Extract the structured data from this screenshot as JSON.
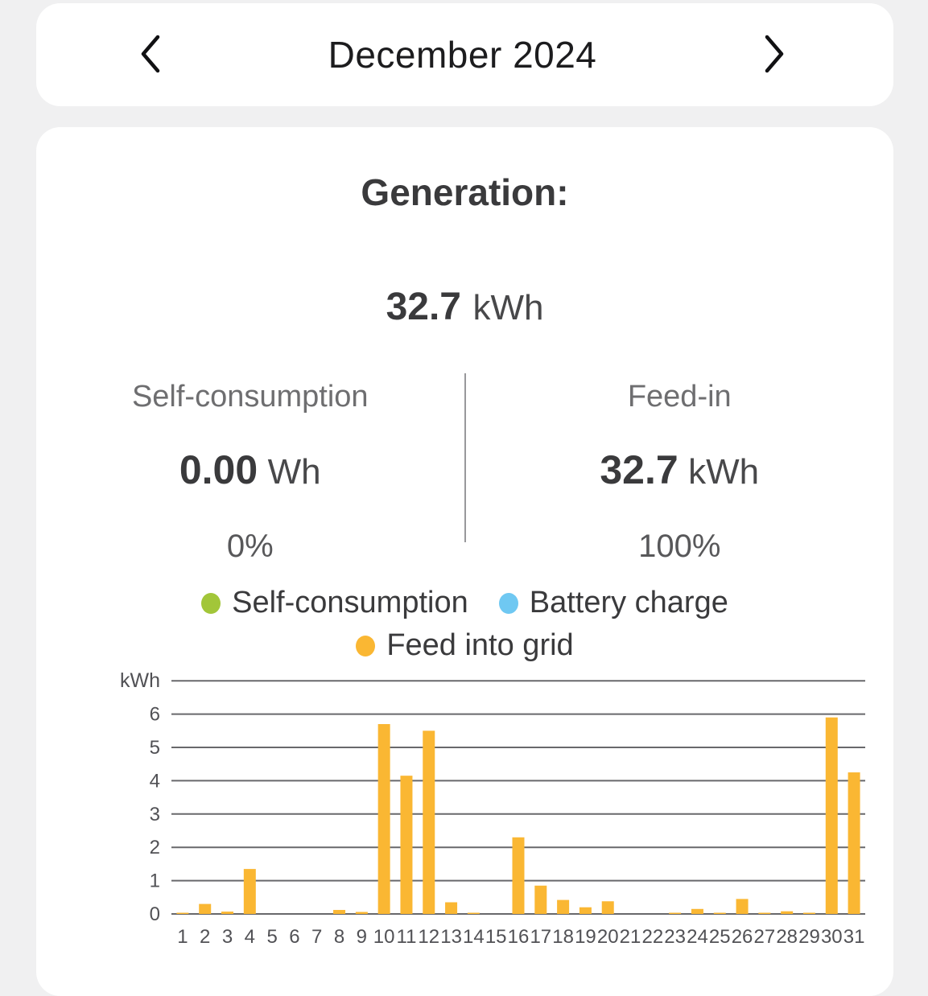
{
  "header": {
    "title": "December 2024",
    "prev": "previous month",
    "next": "next month"
  },
  "generation": {
    "title": "Generation:",
    "total_value": "32.7",
    "total_unit": "kWh",
    "self_consumption": {
      "label": "Self-consumption",
      "value": "0.00",
      "unit": "Wh",
      "percent": "0%"
    },
    "feed_in": {
      "label": "Feed-in",
      "value": "32.7",
      "unit": "kWh",
      "percent": "100%"
    }
  },
  "legend": [
    {
      "label": "Self-consumption",
      "color": "#A2C639"
    },
    {
      "label": "Battery charge",
      "color": "#6FC8F2"
    },
    {
      "label": "Feed into grid",
      "color": "#FAB733"
    }
  ],
  "chart_data": {
    "type": "bar",
    "title": "",
    "ylabel": "kWh",
    "xlabel": "",
    "categories": [
      1,
      2,
      3,
      4,
      5,
      6,
      7,
      8,
      9,
      10,
      11,
      12,
      13,
      14,
      15,
      16,
      17,
      18,
      19,
      20,
      21,
      22,
      23,
      24,
      25,
      26,
      27,
      28,
      29,
      30,
      31
    ],
    "series": [
      {
        "name": "Feed into grid",
        "color": "#FAB733",
        "values": [
          0.02,
          0.3,
          0.07,
          1.35,
          0,
          0,
          0,
          0.12,
          0.06,
          5.7,
          4.15,
          5.5,
          0.35,
          0.03,
          0,
          2.3,
          0.85,
          0.42,
          0.2,
          0.38,
          0,
          0,
          0.03,
          0.15,
          0.02,
          0.45,
          0.03,
          0.08,
          0.03,
          5.9,
          4.25
        ]
      },
      {
        "name": "Self-consumption",
        "color": "#A2C639",
        "values": [
          0,
          0,
          0,
          0,
          0,
          0,
          0,
          0,
          0,
          0,
          0,
          0,
          0,
          0,
          0,
          0,
          0,
          0,
          0,
          0,
          0,
          0,
          0,
          0,
          0,
          0,
          0,
          0,
          0,
          0,
          0
        ]
      },
      {
        "name": "Battery charge",
        "color": "#6FC8F2",
        "values": [
          0,
          0,
          0,
          0,
          0,
          0,
          0,
          0,
          0,
          0,
          0,
          0,
          0,
          0,
          0,
          0,
          0,
          0,
          0,
          0,
          0,
          0,
          0,
          0,
          0,
          0,
          0,
          0,
          0,
          0,
          0
        ]
      }
    ],
    "yticks": [
      0,
      1,
      2,
      3,
      4,
      5,
      6
    ],
    "ylim": [
      0,
      7
    ],
    "grid": true,
    "legend_position": "top"
  }
}
